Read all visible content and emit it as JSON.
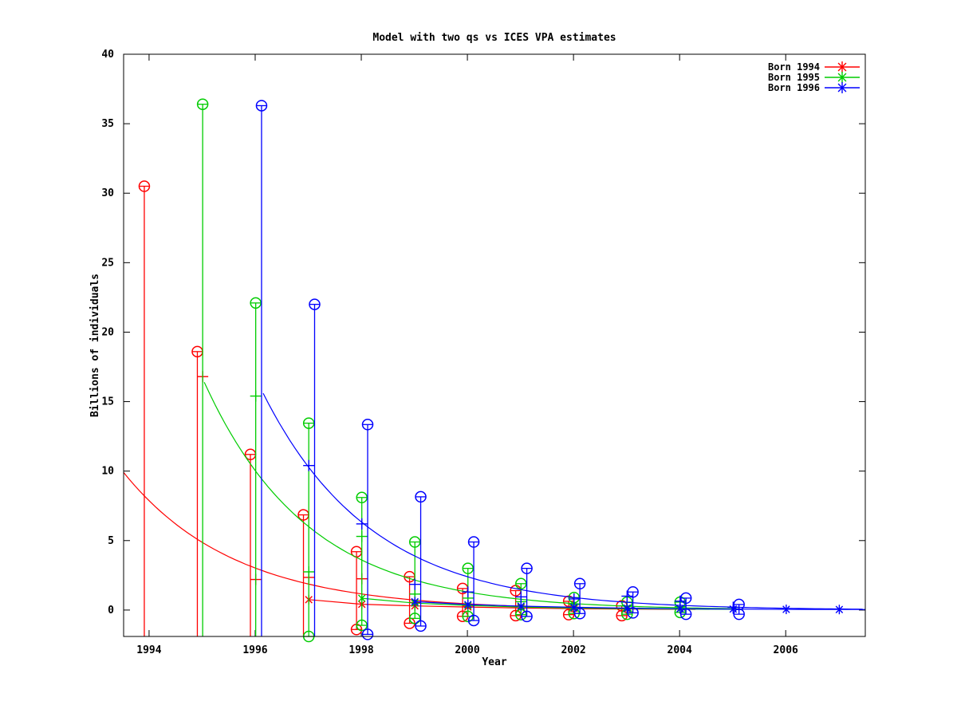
{
  "title": "Model with two qs vs ICES VPA estimates",
  "chart_data": {
    "type": "scatter",
    "title": "Model with two qs vs ICES VPA estimates",
    "xlabel": "Year",
    "ylabel": "Billions of individuals",
    "xlim": [
      1993.52,
      2007.5
    ],
    "ylim": [
      -1.9,
      40
    ],
    "xticks": [
      1994,
      1996,
      1998,
      2000,
      2002,
      2004,
      2006
    ],
    "yticks": [
      0,
      5,
      10,
      15,
      20,
      25,
      30,
      35,
      40
    ],
    "grid": false,
    "legend_position": "top-right",
    "marker_styles": {
      "ci_bound": "circle",
      "point_estimate": "plus",
      "model_point": "asterisk"
    },
    "series": [
      {
        "name": "Born 1994",
        "color": "#ff0000",
        "bar_dx": -0.09,
        "errorbars": [
          {
            "year": 1994,
            "hi": 30.5,
            "lo": null,
            "mid": null
          },
          {
            "year": 1995,
            "hi": 18.6,
            "lo": null,
            "mid": 16.8
          },
          {
            "year": 1996,
            "hi": 11.2,
            "lo": null,
            "mid": 2.2
          },
          {
            "year": 1997,
            "hi": 6.85,
            "lo": null,
            "mid": 2.35
          },
          {
            "year": 1998,
            "hi": 4.2,
            "lo": -1.4,
            "mid": 2.25
          },
          {
            "year": 1999,
            "hi": 2.4,
            "lo": -0.95,
            "mid": 0.55
          },
          {
            "year": 2000,
            "hi": 1.55,
            "lo": -0.45,
            "mid": 0.3
          },
          {
            "year": 2001,
            "hi": 1.4,
            "lo": -0.4,
            "mid": 0.25
          },
          {
            "year": 2002,
            "hi": 0.63,
            "lo": -0.33,
            "mid": 0.2
          },
          {
            "year": 2003,
            "hi": 0.3,
            "lo": -0.4,
            "mid": 0.12
          }
        ],
        "stars": [
          [
            1997,
            0.75
          ],
          [
            1998,
            0.42
          ],
          [
            1999,
            0.3
          ],
          [
            2000,
            0.22
          ],
          [
            2001,
            0.15
          ],
          [
            2002,
            0.1
          ],
          [
            2003,
            0.07
          ]
        ],
        "star_line_end": [
          2004.3,
          0.05
        ],
        "curve": {
          "t0": 1993.52,
          "n0": 9.9,
          "decay": 0.62,
          "t1": 2004.3
        }
      },
      {
        "name": "Born 1995",
        "color": "#00cc00",
        "bar_dx": 0.01,
        "errorbars": [
          {
            "year": 1995,
            "hi": 36.4,
            "lo": null,
            "mid": null
          },
          {
            "year": 1996,
            "hi": 22.1,
            "lo": null,
            "mid": 15.4
          },
          {
            "year": 1997,
            "hi": 13.45,
            "lo": -1.9,
            "mid": 2.75
          },
          {
            "year": 1998,
            "hi": 8.1,
            "lo": -1.1,
            "mid": 5.3
          },
          {
            "year": 1999,
            "hi": 4.9,
            "lo": -0.6,
            "mid": 1.15
          },
          {
            "year": 2000,
            "hi": 3.0,
            "lo": -0.46,
            "mid": 0.86
          },
          {
            "year": 2001,
            "hi": 1.9,
            "lo": -0.33,
            "mid": 0.6
          },
          {
            "year": 2002,
            "hi": 0.9,
            "lo": -0.25,
            "mid": 0.4
          },
          {
            "year": 2003,
            "hi": 0.57,
            "lo": -0.3,
            "mid": 0.3
          },
          {
            "year": 2004,
            "hi": 0.57,
            "lo": -0.17,
            "mid": 0.25
          }
        ],
        "stars": [
          [
            1998,
            0.85
          ],
          [
            1999,
            0.5
          ],
          [
            2000,
            0.33
          ],
          [
            2001,
            0.22
          ],
          [
            2002,
            0.15
          ],
          [
            2003,
            0.1
          ],
          [
            2004,
            0.07
          ]
        ],
        "star_line_end": [
          2005.2,
          0.05
        ],
        "curve": {
          "t0": 1995.04,
          "n0": 16.4,
          "decay": 0.6,
          "t1": 2005.2
        }
      },
      {
        "name": "Born 1996",
        "color": "#0000ff",
        "bar_dx": 0.12,
        "errorbars": [
          {
            "year": 1996,
            "hi": 36.3,
            "lo": null,
            "mid": null
          },
          {
            "year": 1997,
            "hi": 22.0,
            "lo": null,
            "mid": 10.4
          },
          {
            "year": 1998,
            "hi": 13.35,
            "lo": -1.75,
            "mid": 6.2
          },
          {
            "year": 1999,
            "hi": 8.15,
            "lo": -1.15,
            "mid": 1.85
          },
          {
            "year": 2000,
            "hi": 4.9,
            "lo": -0.75,
            "mid": 1.3
          },
          {
            "year": 2001,
            "hi": 3.0,
            "lo": -0.46,
            "mid": 0.95
          },
          {
            "year": 2002,
            "hi": 1.9,
            "lo": -0.25,
            "mid": 0.8
          },
          {
            "year": 2003,
            "hi": 1.3,
            "lo": -0.2,
            "mid": 1.0
          },
          {
            "year": 2004,
            "hi": 0.86,
            "lo": -0.3,
            "mid": 0.64
          },
          {
            "year": 2005,
            "hi": 0.4,
            "lo": -0.3,
            "mid": 0.2
          }
        ],
        "stars": [
          [
            1999,
            0.6
          ],
          [
            2000,
            0.4
          ],
          [
            2001,
            0.28
          ],
          [
            2002,
            0.2
          ],
          [
            2003,
            0.14
          ],
          [
            2004,
            0.1
          ],
          [
            2005,
            0.07
          ],
          [
            2006,
            0.05
          ],
          [
            2007,
            0.04
          ]
        ],
        "star_line_end": [
          2007.5,
          0.04
        ],
        "curve": {
          "t0": 1996.15,
          "n0": 15.6,
          "decay": 0.615,
          "t1": 2007.5
        }
      }
    ]
  },
  "legend": {
    "items": [
      {
        "label": "Born 1994",
        "color": "#ff0000"
      },
      {
        "label": "Born 1995",
        "color": "#00cc00"
      },
      {
        "label": "Born 1996",
        "color": "#0000ff"
      }
    ]
  }
}
